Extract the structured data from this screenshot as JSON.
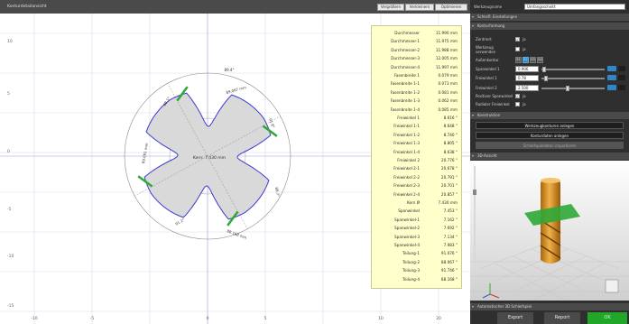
{
  "window": {
    "title": "Konturdetailansicht",
    "buttons": [
      "Vergrößern",
      "Verkleinern",
      "Optimieren"
    ]
  },
  "right_panel": {
    "name_label": "Werkzeugname",
    "name_value": "Umfangsschnitt",
    "sections": {
      "grid": "Schleifl. Einstellungen",
      "contour": "Konturformung",
      "actions": "Konstruktion",
      "view3d": "3D-Ansicht",
      "bottom": "Automatischer 3D Schleifspiel"
    },
    "fields": {
      "center_label": "Zentriert",
      "center_check": "✓",
      "center_text": "ja",
      "tool_label": "Werkzeug verwenden",
      "tool_check": "",
      "tool_text": "ja",
      "ruler_label": "Außenkontur",
      "segments": [
        "S1",
        "S2",
        "S3",
        "S4"
      ],
      "width_label": "Spanwinkel 1",
      "width_value": "0.906",
      "angle1_label": "Freiwinkel 1",
      "angle1_value": "0.78",
      "angle2_label": "Freiwinkel 2",
      "angle2_value": "2.500",
      "pos_label": "Positiver Spanwinkel",
      "pos_check": "✓",
      "pos_text": "ja",
      "rad_label": "Radialer Freiwinkel",
      "rad_check": "",
      "rad_text": "ja"
    },
    "action_buttons": [
      {
        "label": "Werkzeugkonturen anlegen",
        "enabled": true
      },
      {
        "label": "Konturdaten anlegen",
        "enabled": true
      },
      {
        "label": "Schleifspieldaten importieren",
        "enabled": false
      }
    ],
    "footer_buttons": [
      "Export",
      "Report",
      "OK"
    ]
  },
  "table": {
    "rows": [
      [
        "Durchmesser",
        "11.990 mm"
      ],
      [
        "Durchmesser-1",
        "11.975 mm"
      ],
      [
        "Durchmesser-2",
        "11.988 mm"
      ],
      [
        "Durchmesser-3",
        "12.005 mm"
      ],
      [
        "Durchmesser-4",
        "11.997 mm"
      ],
      [
        "Fasenbreite 1",
        "0.079 mm"
      ],
      [
        "Fasenbreite 1-1",
        "0.073 mm"
      ],
      [
        "Fasenbreite 1-2",
        "0.081 mm"
      ],
      [
        "Fasenbreite 1-3",
        "0.062 mm"
      ],
      [
        "Fasenbreite 1-4",
        "0.085 mm"
      ],
      [
        "Freiwinkel 1",
        "8.616 °"
      ],
      [
        "Freiwinkel 1-1",
        "8.648 °"
      ],
      [
        "Freiwinkel 1-2",
        "8.740 °"
      ],
      [
        "Freiwinkel 1-3",
        "8.805 °"
      ],
      [
        "Freiwinkel 1-4",
        "8.638 °"
      ],
      [
        "Freiwinkel 2",
        "20.776 °"
      ],
      [
        "Freiwinkel 2-1",
        "20.678 °"
      ],
      [
        "Freiwinkel 2-2",
        "20.791 °"
      ],
      [
        "Freiwinkel 2-3",
        "20.701 °"
      ],
      [
        "Freiwinkel 2-4",
        "20.857 °"
      ],
      [
        "Kern Ø",
        "7.430 mm"
      ],
      [
        "Spanwinkel",
        "7.453 °"
      ],
      [
        "Spanwinkel-1",
        "7.162 °"
      ],
      [
        "Spanwinkel-2",
        "7.692 °"
      ],
      [
        "Spanwinkel-3",
        "7.134 °"
      ],
      [
        "Spanwinkel-4",
        "7.983 °"
      ],
      [
        "Teilung-1",
        "91.076 °"
      ],
      [
        "Teilung-2",
        "88.067 °"
      ],
      [
        "Teilung-3",
        "91.746 °"
      ],
      [
        "Teilung-4",
        "88.168 °"
      ]
    ]
  },
  "drawing": {
    "x_ticks": [
      "-10",
      "-5",
      "0",
      "5",
      "10",
      "20"
    ],
    "y_ticks": [
      "10",
      "5",
      "0",
      "-5",
      "-10",
      "-15"
    ],
    "core_label": "Kern: 7.430 mm",
    "dims": [
      "89.067 mm",
      "88.1°",
      "89.091 mm",
      "91.8°",
      "88.7°",
      "88.168 mm",
      "91.2°",
      "89.4°"
    ],
    "colors": {
      "contour": "#3b3bd1",
      "fill": "#d9d9d9",
      "green": "#2fa836",
      "grid": "#d8d8ec"
    }
  }
}
